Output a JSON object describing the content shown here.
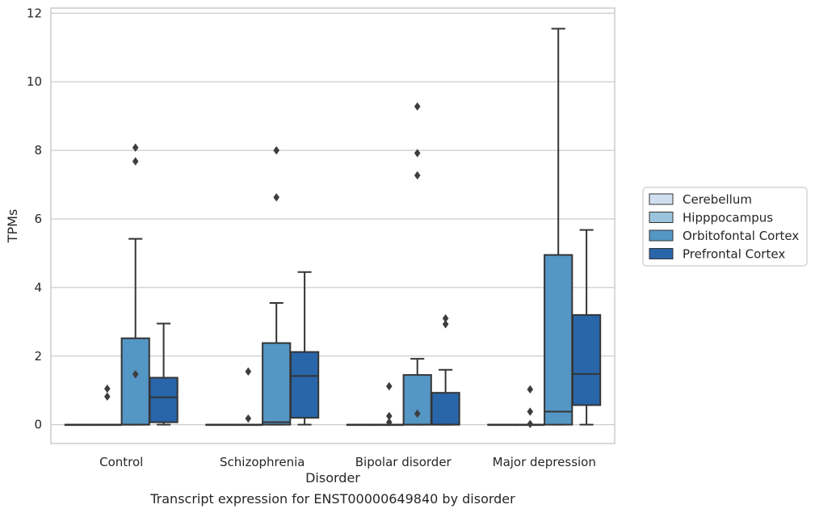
{
  "caption": "Transcript expression for ENST00000649840 by disorder",
  "chart_data": {
    "type": "boxplot",
    "xlabel": "Disorder",
    "ylabel": "TPMs",
    "ylim": [
      -0.55,
      12.15
    ],
    "yticks": [
      0,
      2,
      4,
      6,
      8,
      10,
      12
    ],
    "grid": "horizontal",
    "legend_position": "right",
    "categories": [
      "Control",
      "Schizophrenia",
      "Bipolar disorder",
      "Major depression"
    ],
    "series": [
      {
        "name": "Cerebellum",
        "color": "#d0dff0",
        "boxes": [
          {
            "q1": 0,
            "median": 0,
            "q3": 0,
            "whisker_low": 0,
            "whisker_high": 0,
            "outliers": []
          },
          {
            "q1": 0,
            "median": 0,
            "q3": 0,
            "whisker_low": 0,
            "whisker_high": 0,
            "outliers": []
          },
          {
            "q1": 0,
            "median": 0,
            "q3": 0,
            "whisker_low": 0,
            "whisker_high": 0,
            "outliers": []
          },
          {
            "q1": 0,
            "median": 0,
            "q3": 0,
            "whisker_low": 0,
            "whisker_high": 0,
            "outliers": []
          }
        ]
      },
      {
        "name": "Hipppocampus",
        "color": "#9ac4dd",
        "boxes": [
          {
            "q1": 0,
            "median": 0,
            "q3": 0,
            "whisker_low": 0,
            "whisker_high": 0,
            "outliers": [
              1.05,
              0.82
            ]
          },
          {
            "q1": 0,
            "median": 0,
            "q3": 0,
            "whisker_low": 0,
            "whisker_high": 0,
            "outliers": [
              1.55,
              0.18
            ]
          },
          {
            "q1": 0,
            "median": 0,
            "q3": 0,
            "whisker_low": 0,
            "whisker_high": 0,
            "outliers": [
              1.12,
              0.25,
              0.07
            ]
          },
          {
            "q1": 0,
            "median": 0,
            "q3": 0,
            "whisker_low": 0,
            "whisker_high": 0,
            "outliers": [
              1.03,
              0.38,
              0.02
            ]
          }
        ]
      },
      {
        "name": "Orbitofontal Cortex",
        "color": "#5496c4",
        "boxes": [
          {
            "q1": 0,
            "median": 0,
            "q3": 2.52,
            "whisker_low": 0,
            "whisker_high": 5.42,
            "outliers": [
              1.47,
              8.08,
              7.68
            ]
          },
          {
            "q1": 0,
            "median": 0.07,
            "q3": 2.38,
            "whisker_low": 0,
            "whisker_high": 3.55,
            "outliers": [
              8.0,
              6.63
            ]
          },
          {
            "q1": 0,
            "median": 0,
            "q3": 1.45,
            "whisker_low": 0,
            "whisker_high": 1.92,
            "outliers": [
              0.32,
              9.28,
              7.92,
              7.27
            ]
          },
          {
            "q1": 0,
            "median": 0.38,
            "q3": 4.95,
            "whisker_low": 0,
            "whisker_high": 11.55,
            "outliers": []
          }
        ]
      },
      {
        "name": "Prefrontal Cortex",
        "color": "#2865a9",
        "boxes": [
          {
            "q1": 0.07,
            "median": 0.8,
            "q3": 1.37,
            "whisker_low": 0,
            "whisker_high": 2.95,
            "outliers": []
          },
          {
            "q1": 0.2,
            "median": 1.42,
            "q3": 2.12,
            "whisker_low": 0,
            "whisker_high": 4.45,
            "outliers": []
          },
          {
            "q1": 0,
            "median": 0,
            "q3": 0.93,
            "whisker_low": 0,
            "whisker_high": 1.6,
            "outliers": [
              3.1,
              2.93
            ]
          },
          {
            "q1": 0.57,
            "median": 1.48,
            "q3": 3.2,
            "whisker_low": 0,
            "whisker_high": 5.68,
            "outliers": []
          }
        ]
      }
    ]
  }
}
